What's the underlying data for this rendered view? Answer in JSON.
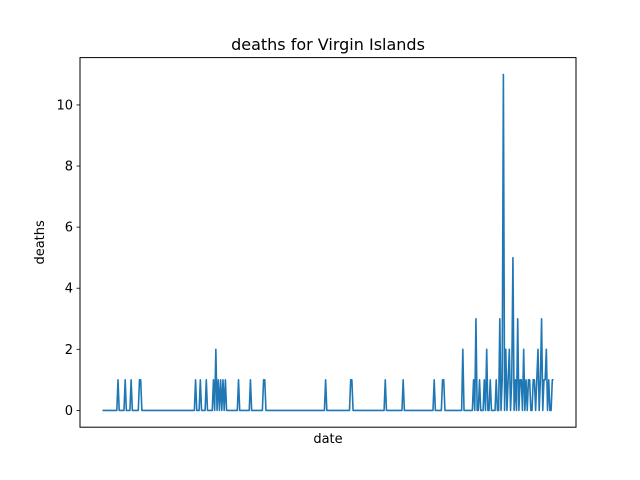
{
  "chart_data": {
    "type": "line",
    "title": "deaths for Virgin Islands",
    "xlabel": "date",
    "ylabel": "deaths",
    "ylim": [
      -0.55,
      11.55
    ],
    "yticks": [
      0,
      2,
      4,
      6,
      8,
      10
    ],
    "xticks": [],
    "grid": false,
    "color": "#1f77b4",
    "series": [
      {
        "values": [
          0,
          0,
          0,
          0,
          0,
          0,
          0,
          0,
          0,
          0,
          0,
          0,
          0,
          1,
          0,
          0,
          0,
          0,
          0,
          1,
          0,
          0,
          0,
          0,
          1,
          0,
          0,
          0,
          0,
          0,
          0,
          1,
          1,
          0,
          0,
          0,
          0,
          0,
          0,
          0,
          0,
          0,
          0,
          0,
          0,
          0,
          0,
          0,
          0,
          0,
          0,
          0,
          0,
          0,
          0,
          0,
          0,
          0,
          0,
          0,
          0,
          0,
          0,
          0,
          0,
          0,
          0,
          0,
          0,
          0,
          0,
          0,
          0,
          0,
          0,
          0,
          0,
          0,
          1,
          0,
          0,
          0,
          1,
          0,
          0,
          0,
          0,
          1,
          0,
          0,
          0,
          0,
          0,
          1,
          0,
          2,
          0,
          1,
          0,
          1,
          0,
          1,
          0,
          1,
          0,
          0,
          0,
          0,
          0,
          0,
          0,
          0,
          0,
          0,
          1,
          0,
          0,
          0,
          0,
          0,
          0,
          0,
          0,
          0,
          1,
          0,
          0,
          0,
          0,
          0,
          0,
          0,
          0,
          0,
          0,
          1,
          1,
          0,
          0,
          0,
          0,
          0,
          0,
          0,
          0,
          0,
          0,
          0,
          0,
          0,
          0,
          0,
          0,
          0,
          0,
          0,
          0,
          0,
          0,
          0,
          0,
          0,
          0,
          0,
          0,
          0,
          0,
          0,
          0,
          0,
          0,
          0,
          0,
          0,
          0,
          0,
          0,
          0,
          0,
          0,
          0,
          0,
          0,
          0,
          0,
          0,
          0,
          1,
          0,
          0,
          0,
          0,
          0,
          0,
          0,
          0,
          0,
          0,
          0,
          0,
          0,
          0,
          0,
          0,
          0,
          0,
          0,
          0,
          1,
          1,
          0,
          0,
          0,
          0,
          0,
          0,
          0,
          0,
          0,
          0,
          0,
          0,
          0,
          0,
          0,
          0,
          0,
          0,
          0,
          0,
          0,
          0,
          0,
          0,
          0,
          0,
          0,
          1,
          0,
          0,
          0,
          0,
          0,
          0,
          0,
          0,
          0,
          0,
          0,
          0,
          0,
          0,
          1,
          0,
          0,
          0,
          0,
          0,
          0,
          0,
          0,
          0,
          0,
          0,
          0,
          0,
          0,
          0,
          0,
          0,
          0,
          0,
          0,
          0,
          0,
          0,
          0,
          0,
          1,
          0,
          0,
          0,
          0,
          0,
          0,
          1,
          1,
          0,
          0,
          0,
          0,
          0,
          0,
          0,
          0,
          0,
          0,
          0,
          0,
          0,
          0,
          0,
          2,
          0,
          0,
          0,
          0,
          0,
          0,
          0,
          0,
          1,
          0,
          3,
          0,
          0,
          1,
          0,
          0,
          0,
          1,
          0,
          2,
          0,
          0,
          1,
          0,
          0,
          0,
          0,
          1,
          0,
          0,
          3,
          0,
          1,
          11,
          0,
          2,
          0,
          1,
          2,
          0,
          1,
          5,
          0,
          1,
          0,
          3,
          0,
          1,
          1,
          0,
          2,
          0,
          1,
          0,
          1,
          1,
          0,
          0,
          1,
          1,
          0,
          1,
          2,
          0,
          1,
          3,
          0,
          1,
          1,
          2,
          0,
          1,
          0,
          0,
          1,
          1
        ]
      }
    ]
  }
}
